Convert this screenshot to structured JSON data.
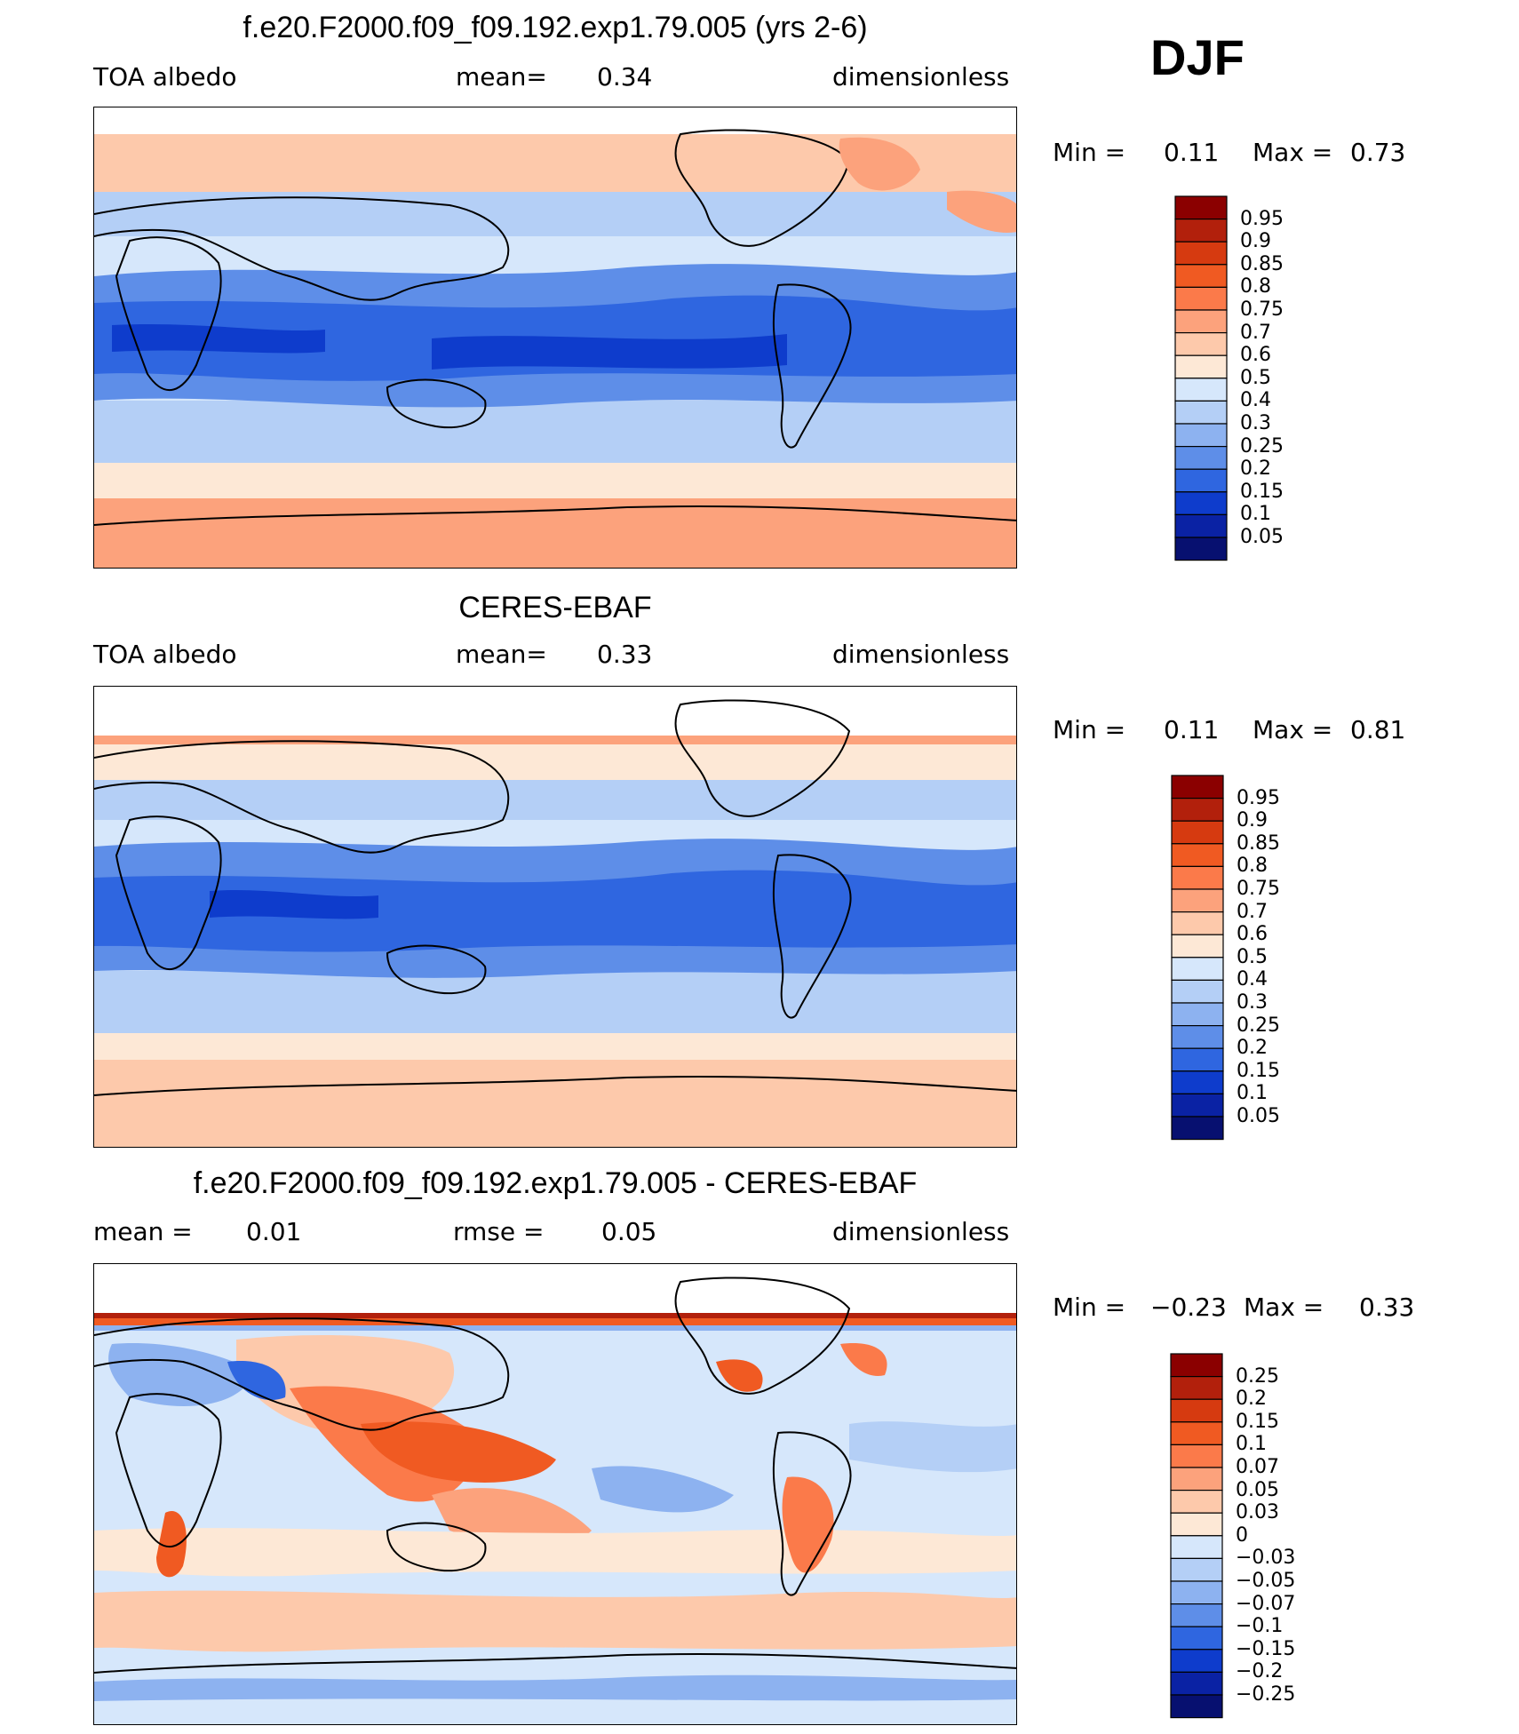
{
  "season": "DJF",
  "panels": [
    {
      "title": "f.e20.F2000.f09_f09.192.exp1.79.005 (yrs 2-6)",
      "left_label": "TOA albedo",
      "center_label": "mean=",
      "center_value": "0.34",
      "right_label": "dimensionless",
      "min_label": "Min =",
      "min_value": "0.11",
      "max_label": "Max =",
      "max_value": "0.73",
      "colorbar": {
        "labels": [
          "0.95",
          "0.9",
          "0.85",
          "0.8",
          "0.75",
          "0.7",
          "0.6",
          "0.5",
          "0.4",
          "0.3",
          "0.25",
          "0.2",
          "0.15",
          "0.1",
          "0.05"
        ],
        "colors": [
          "#8b0000",
          "#b2200c",
          "#d63a10",
          "#f05a22",
          "#fb7a4a",
          "#fca27c",
          "#fdc9ab",
          "#fde8d6",
          "#d6e7fb",
          "#b4cff6",
          "#8db2f0",
          "#5e8ee8",
          "#2f66e0",
          "#0e3ccc",
          "#0a22a4",
          "#071070"
        ]
      }
    },
    {
      "title": "CERES-EBAF",
      "left_label": "TOA albedo",
      "center_label": "mean=",
      "center_value": "0.33",
      "right_label": "dimensionless",
      "min_label": "Min =",
      "min_value": "0.11",
      "max_label": "Max =",
      "max_value": "0.81",
      "colorbar": {
        "labels": [
          "0.95",
          "0.9",
          "0.85",
          "0.8",
          "0.75",
          "0.7",
          "0.6",
          "0.5",
          "0.4",
          "0.3",
          "0.25",
          "0.2",
          "0.15",
          "0.1",
          "0.05"
        ],
        "colors": [
          "#8b0000",
          "#b2200c",
          "#d63a10",
          "#f05a22",
          "#fb7a4a",
          "#fca27c",
          "#fdc9ab",
          "#fde8d6",
          "#d6e7fb",
          "#b4cff6",
          "#8db2f0",
          "#5e8ee8",
          "#2f66e0",
          "#0e3ccc",
          "#0a22a4",
          "#071070"
        ]
      }
    },
    {
      "title": "f.e20.F2000.f09_f09.192.exp1.79.005 - CERES-EBAF",
      "left_label": "mean =",
      "left_value": "0.01",
      "center_label": "rmse =",
      "center_value": "0.05",
      "right_label": "dimensionless",
      "min_label": "Min =",
      "min_value": "−0.23",
      "max_label": "Max =",
      "max_value": "0.33",
      "colorbar": {
        "labels": [
          "0.25",
          "0.2",
          "0.15",
          "0.1",
          "0.07",
          "0.05",
          "0.03",
          "0",
          "−0.03",
          "−0.05",
          "−0.07",
          "−0.1",
          "−0.15",
          "−0.2",
          "−0.25"
        ],
        "colors": [
          "#8b0000",
          "#b2200c",
          "#d63a10",
          "#f05a22",
          "#fb7a4a",
          "#fca27c",
          "#fdc9ab",
          "#fde8d6",
          "#d6e7fb",
          "#b4cff6",
          "#8db2f0",
          "#5e8ee8",
          "#2f66e0",
          "#0e3ccc",
          "#0a22a4",
          "#071070"
        ]
      }
    }
  ]
}
